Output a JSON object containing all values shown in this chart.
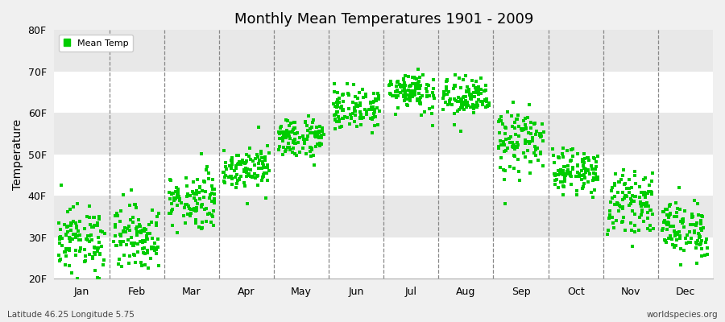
{
  "title": "Monthly Mean Temperatures 1901 - 2009",
  "ylabel": "Temperature",
  "subtitle_left": "Latitude 46.25 Longitude 5.75",
  "subtitle_right": "worldspecies.org",
  "legend_label": "Mean Temp",
  "marker_color": "#00cc00",
  "marker": "s",
  "marker_size": 2.5,
  "ylim": [
    20,
    80
  ],
  "yticks": [
    20,
    30,
    40,
    50,
    60,
    70,
    80
  ],
  "ytick_labels": [
    "20F",
    "30F",
    "40F",
    "50F",
    "60F",
    "70F",
    "80F"
  ],
  "months": [
    "Jan",
    "Feb",
    "Mar",
    "Apr",
    "May",
    "Jun",
    "Jul",
    "Aug",
    "Sep",
    "Oct",
    "Nov",
    "Dec"
  ],
  "background_color": "#f0f0f0",
  "band_colors": [
    "#ffffff",
    "#e8e8e8"
  ],
  "n_years": 109,
  "monthly_means": [
    29.5,
    30.0,
    39.0,
    47.0,
    54.0,
    61.0,
    65.5,
    63.5,
    53.0,
    46.0,
    38.5,
    32.0
  ],
  "monthly_stds": [
    4.0,
    4.0,
    3.5,
    2.5,
    2.5,
    2.5,
    2.5,
    2.5,
    4.0,
    2.5,
    3.5,
    3.5
  ]
}
